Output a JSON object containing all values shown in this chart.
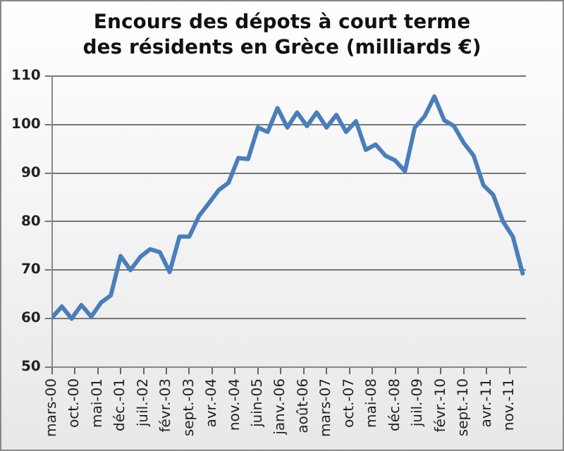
{
  "chart_data": {
    "type": "line",
    "title": "Encours des dépots à court terme\ndes résidents en Grèce (milliards €)",
    "x": [
      "2000-03",
      "2000-06",
      "2000-09",
      "2000-12",
      "2001-03",
      "2001-06",
      "2001-09",
      "2001-12",
      "2002-03",
      "2002-06",
      "2002-09",
      "2002-12",
      "2003-03",
      "2003-06",
      "2003-09",
      "2003-12",
      "2004-03",
      "2004-06",
      "2004-09",
      "2004-12",
      "2005-03",
      "2005-06",
      "2005-09",
      "2005-12",
      "2006-03",
      "2006-06",
      "2006-09",
      "2006-12",
      "2007-03",
      "2007-06",
      "2007-09",
      "2007-12",
      "2008-03",
      "2008-06",
      "2008-09",
      "2008-12",
      "2009-03",
      "2009-06",
      "2009-09",
      "2009-12",
      "2010-03",
      "2010-06",
      "2010-09",
      "2010-12",
      "2011-03",
      "2011-06",
      "2011-09",
      "2011-12",
      "2012-03"
    ],
    "series": [
      {
        "color": "#4a7ebb",
        "values": [
          60.2,
          62.5,
          60,
          62.8,
          60.4,
          63.3,
          64.8,
          72.9,
          70,
          72.7,
          74.3,
          73.7,
          69.6,
          76.9,
          76.9,
          81.2,
          83.8,
          86.5,
          88,
          93.1,
          92.9,
          99.4,
          98.5,
          103.4,
          99.4,
          102.5,
          99.7,
          102.5,
          99.4,
          102,
          98.5,
          100.7,
          94.8,
          95.9,
          93.6,
          92.6,
          90.4,
          99.4,
          101.7,
          105.8,
          100.9,
          99.7,
          96.2,
          93.6,
          87.5,
          85.5,
          80,
          76.9,
          69.3
        ]
      }
    ],
    "xlim": [
      "2000-03",
      "2012-04"
    ],
    "xticks": [
      {
        "value": "2000-03",
        "label": "mars-00"
      },
      {
        "value": "2000-10",
        "label": "oct.-00"
      },
      {
        "value": "2001-05",
        "label": "mai-01"
      },
      {
        "value": "2001-12",
        "label": "déc.-01"
      },
      {
        "value": "2002-07",
        "label": "juil.-02"
      },
      {
        "value": "2003-02",
        "label": "févr.-03"
      },
      {
        "value": "2003-09",
        "label": "sept.-03"
      },
      {
        "value": "2004-04",
        "label": "avr.-04"
      },
      {
        "value": "2004-11",
        "label": "nov.-04"
      },
      {
        "value": "2005-06",
        "label": "juin-05"
      },
      {
        "value": "2006-01",
        "label": "janv.-06"
      },
      {
        "value": "2006-08",
        "label": "août-06"
      },
      {
        "value": "2007-03",
        "label": "mars-07"
      },
      {
        "value": "2007-10",
        "label": "oct.-07"
      },
      {
        "value": "2008-05",
        "label": "mai-08"
      },
      {
        "value": "2008-12",
        "label": "déc.-08"
      },
      {
        "value": "2009-07",
        "label": "juil.-09"
      },
      {
        "value": "2010-02",
        "label": "févr.-10"
      },
      {
        "value": "2010-09",
        "label": "sept.-10"
      },
      {
        "value": "2011-04",
        "label": "avr.-11"
      },
      {
        "value": "2011-11",
        "label": "nov.-11"
      }
    ],
    "ylim": [
      50,
      110
    ],
    "yticks": [
      50,
      60,
      70,
      80,
      90,
      100,
      110
    ],
    "grid": "y",
    "legend": false,
    "marker": "none",
    "line_style": "solid"
  }
}
